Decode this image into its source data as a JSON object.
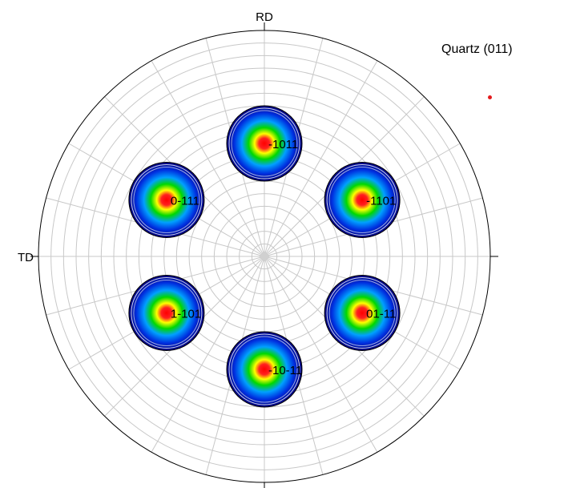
{
  "chart_data": {
    "type": "pole-figure",
    "title": "Quartz (011)",
    "axis_labels": {
      "top": "RD",
      "left": "TD"
    },
    "grid": {
      "radial_lines_every_deg": 15,
      "polar_rings_every_deg": 5,
      "max_polar_deg": 90
    },
    "legend_marker_color": "#e41a1c",
    "poles": [
      {
        "label": "-1011",
        "azimuth_deg": 90,
        "polar_deg": 45
      },
      {
        "label": "0-111",
        "azimuth_deg": 150,
        "polar_deg": 45
      },
      {
        "label": "-1101",
        "azimuth_deg": 30,
        "polar_deg": 45
      },
      {
        "label": "1-101",
        "azimuth_deg": 210,
        "polar_deg": 45
      },
      {
        "label": "01-11",
        "azimuth_deg": 330,
        "polar_deg": 45
      },
      {
        "label": "-10-11",
        "azimuth_deg": 270,
        "polar_deg": 45
      }
    ],
    "pole_spread_deg": 15
  }
}
